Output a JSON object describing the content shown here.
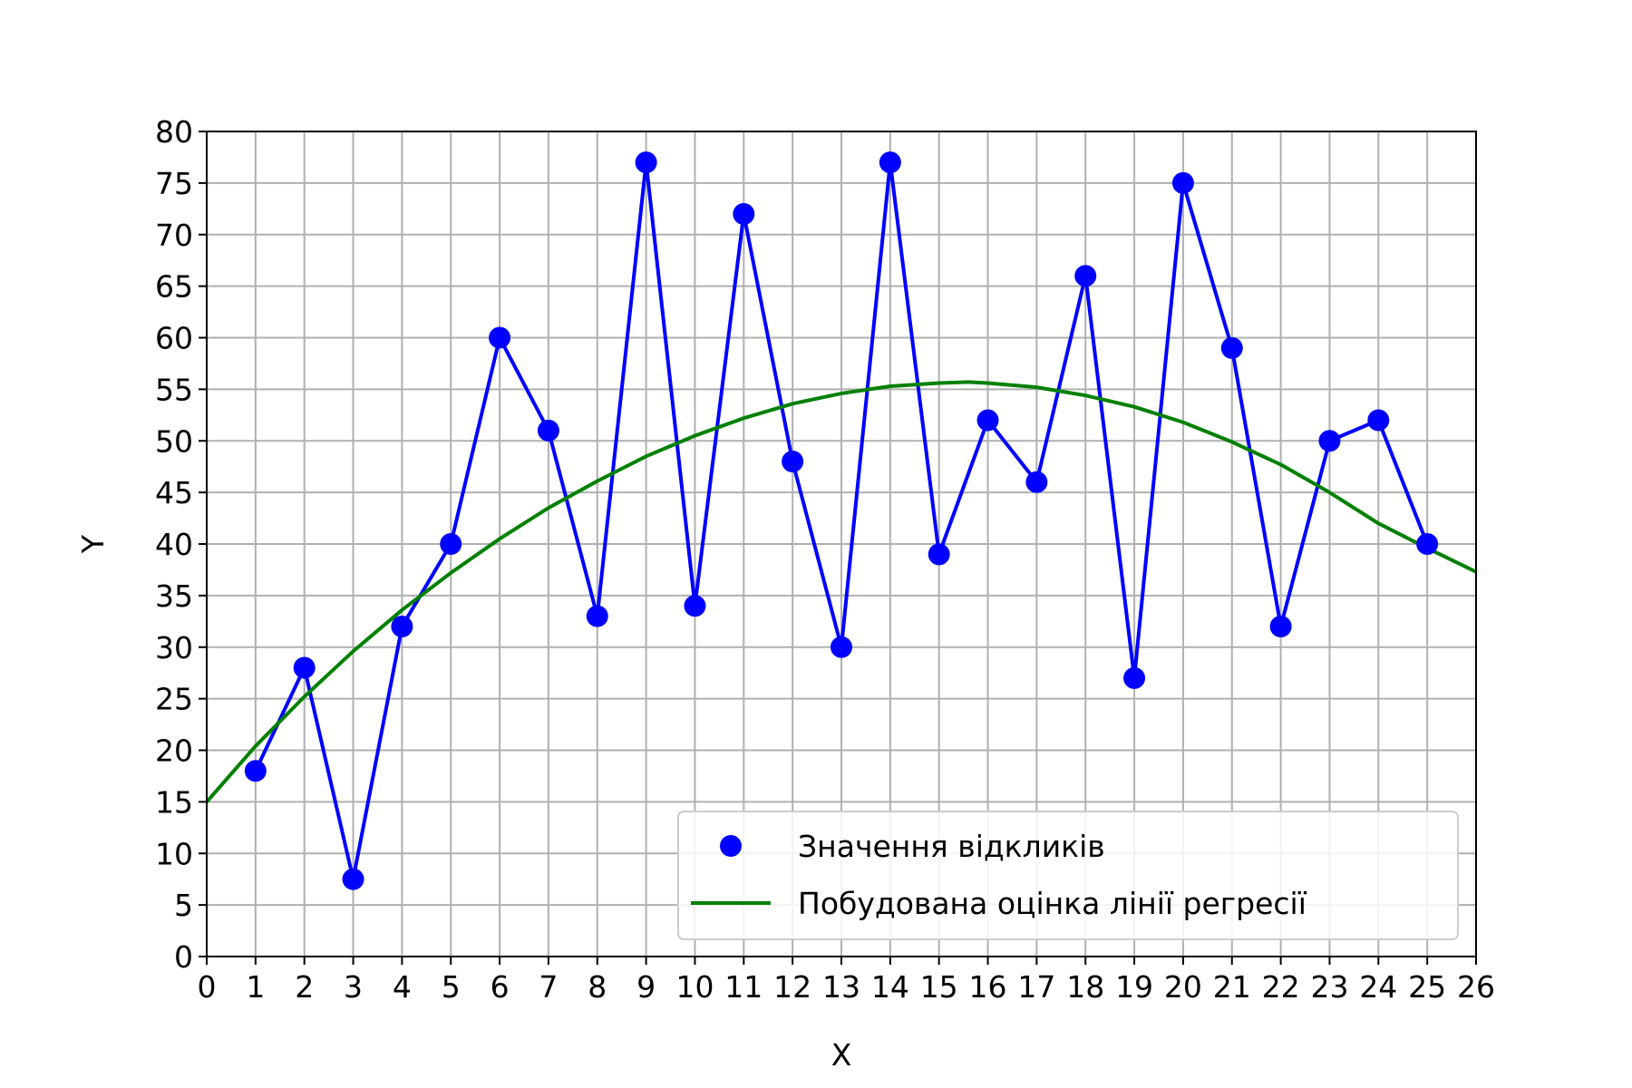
{
  "chart_data": {
    "type": "line",
    "xlabel": "X",
    "ylabel": "Y",
    "xlim": [
      0,
      26
    ],
    "ylim": [
      0,
      80
    ],
    "xticks": [
      0,
      1,
      2,
      3,
      4,
      5,
      6,
      7,
      8,
      9,
      10,
      11,
      12,
      13,
      14,
      15,
      16,
      17,
      18,
      19,
      20,
      21,
      22,
      23,
      24,
      25,
      26
    ],
    "yticks": [
      0,
      5,
      10,
      15,
      20,
      25,
      30,
      35,
      40,
      45,
      50,
      55,
      60,
      65,
      70,
      75,
      80
    ],
    "grid": true,
    "legend_position": "lower right",
    "series": [
      {
        "name": "Значення відкликів",
        "kind": "line-markers",
        "color": "#0000ff",
        "x": [
          1,
          2,
          3,
          4,
          5,
          6,
          7,
          8,
          9,
          10,
          11,
          12,
          13,
          14,
          15,
          16,
          17,
          18,
          19,
          20,
          21,
          22,
          23,
          24,
          25
        ],
        "y": [
          18,
          28,
          7.5,
          32,
          40,
          60,
          51,
          33,
          77,
          34,
          72,
          48,
          30,
          77,
          39,
          52,
          46,
          66,
          27,
          75,
          59,
          32,
          50,
          52,
          40
        ]
      },
      {
        "name": "Побудована оцінка лінії регресії",
        "kind": "curve",
        "color": "#008000",
        "x": [
          0,
          1,
          2,
          3,
          4,
          5,
          6,
          7,
          8,
          9,
          10,
          11,
          12,
          13,
          14,
          15,
          15.6,
          16,
          17,
          18,
          19,
          20,
          21,
          22,
          23,
          24,
          25,
          26
        ],
        "y": [
          15,
          20.4,
          25.2,
          29.6,
          33.6,
          37.2,
          40.5,
          43.5,
          46.1,
          48.5,
          50.5,
          52.2,
          53.6,
          54.6,
          55.3,
          55.6,
          55.7,
          55.6,
          55.2,
          54.4,
          53.3,
          51.8,
          49.9,
          47.7,
          45.0,
          42.0,
          39.6,
          37.3
        ]
      }
    ]
  }
}
